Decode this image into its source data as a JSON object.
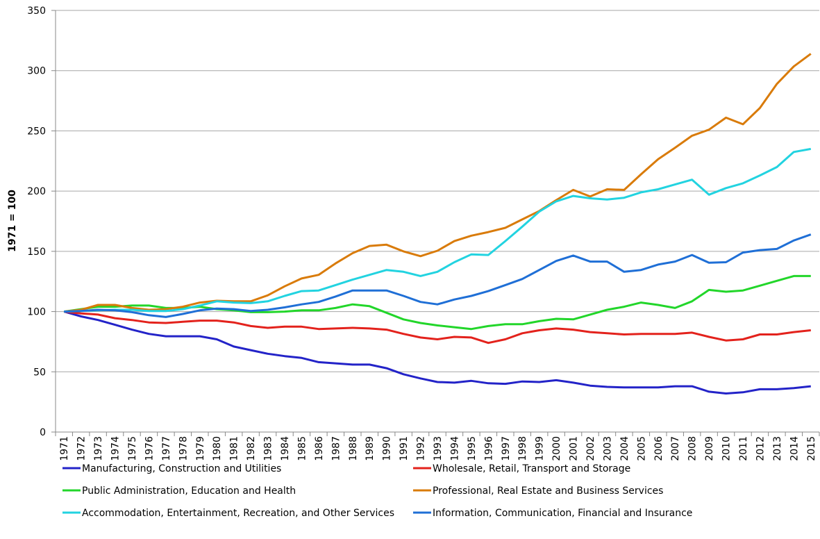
{
  "chart_data": {
    "type": "line",
    "ylabel": "1971 = 100",
    "categories": [
      "1971",
      "1972",
      "1973",
      "1974",
      "1975",
      "1976",
      "1977",
      "1978",
      "1979",
      "1980",
      "1981",
      "1982",
      "1983",
      "1984",
      "1985",
      "1986",
      "1987",
      "1988",
      "1989",
      "1990",
      "1991",
      "1992",
      "1993",
      "1994",
      "1995",
      "1996",
      "1997",
      "1998",
      "1999",
      "2000",
      "2001",
      "2002",
      "2003",
      "2004",
      "2005",
      "2006",
      "2007",
      "2008",
      "2009",
      "2010",
      "2011",
      "2012",
      "2013",
      "2014",
      "2015"
    ],
    "ylim": [
      0,
      350
    ],
    "yticks": [
      0,
      50,
      100,
      150,
      200,
      250,
      300,
      350
    ],
    "grid": true,
    "series": [
      {
        "name": "Manufacturing, Construction and Utilities",
        "color": "#2323c8",
        "values": [
          100,
          96,
          93,
          89,
          85,
          81.5,
          79.5,
          79.5,
          79.5,
          77,
          71,
          68,
          65,
          63,
          61.5,
          58,
          57,
          56,
          56,
          53,
          48,
          44.5,
          41.5,
          41,
          42.5,
          40.5,
          40,
          42,
          41.5,
          43,
          41,
          38.5,
          37.5,
          37,
          37,
          37,
          38,
          38,
          33.5,
          32,
          33,
          35.5,
          35.5,
          36.5,
          38
        ]
      },
      {
        "name": "Wholesale, Retail, Transport and Storage",
        "color": "#e3221c",
        "values": [
          100,
          98.5,
          97.5,
          94.5,
          93,
          91,
          90.5,
          91.5,
          92.5,
          92.5,
          91,
          88,
          86.5,
          87.5,
          87.5,
          85.5,
          86,
          86.5,
          86,
          85,
          81.5,
          78.5,
          77,
          79,
          78.5,
          74,
          77,
          82,
          84.5,
          86,
          85,
          83,
          82,
          81,
          81.5,
          81.5,
          81.5,
          82.5,
          79,
          76,
          77,
          81,
          81,
          83,
          84.5
        ]
      },
      {
        "name": "Public Administration, Education and Health",
        "color": "#22d62a",
        "values": [
          100,
          102,
          104,
          104,
          105,
          105,
          103,
          103,
          104,
          102,
          101,
          99.5,
          99.5,
          100,
          101,
          101,
          103,
          106,
          104.5,
          99,
          93.5,
          90.5,
          88.5,
          87,
          85.5,
          88,
          89.5,
          89.5,
          92,
          94,
          93.5,
          97.5,
          101.5,
          104,
          107.5,
          105.5,
          103,
          108.5,
          118,
          116.5,
          117.5,
          121.5,
          125.5,
          129.5,
          129.5
        ]
      },
      {
        "name": "Professional, Real Estate and Business Services",
        "color": "#d97b0a",
        "values": [
          100,
          101.5,
          105.5,
          105.5,
          103,
          101.5,
          102,
          104,
          107.5,
          109,
          108.5,
          108.5,
          113.5,
          121,
          127.5,
          130.5,
          140,
          148.5,
          154.5,
          155.5,
          150,
          146,
          150.5,
          158.5,
          163,
          166,
          169.5,
          176.5,
          183.5,
          192.5,
          201,
          195.5,
          201.5,
          201,
          214,
          226.5,
          236,
          246,
          251,
          261,
          255.5,
          269,
          289,
          303.5,
          314
        ]
      },
      {
        "name": "Accommodation, Entertainment, Recreation, and Other Services",
        "color": "#22d3e0",
        "values": [
          100,
          100.5,
          101,
          101.5,
          101.5,
          100.5,
          100.5,
          102,
          105,
          108.5,
          107.5,
          107,
          108.5,
          113,
          117,
          117.5,
          122,
          126.5,
          130.5,
          134.5,
          133,
          129.5,
          133,
          141,
          147.5,
          147,
          158.5,
          170.5,
          183,
          191.5,
          196,
          194,
          193,
          194.5,
          199,
          201.5,
          205.5,
          209.5,
          197,
          202.5,
          206.5,
          213,
          220,
          232.5,
          235
        ]
      },
      {
        "name": "Information, Communication, Financial and Insurance",
        "color": "#1f6fd6",
        "values": [
          100,
          100.5,
          101.5,
          101,
          99.5,
          97,
          95.5,
          98,
          101,
          102.5,
          102,
          100.5,
          101.5,
          103.5,
          106,
          108,
          112.5,
          117.5,
          117.5,
          117.5,
          113,
          108,
          106,
          110,
          113,
          117,
          122,
          127,
          134.5,
          142,
          146.5,
          141.5,
          141.5,
          133,
          134.5,
          139,
          141.5,
          147,
          140.5,
          141,
          149,
          151,
          152,
          159,
          164
        ]
      }
    ]
  }
}
